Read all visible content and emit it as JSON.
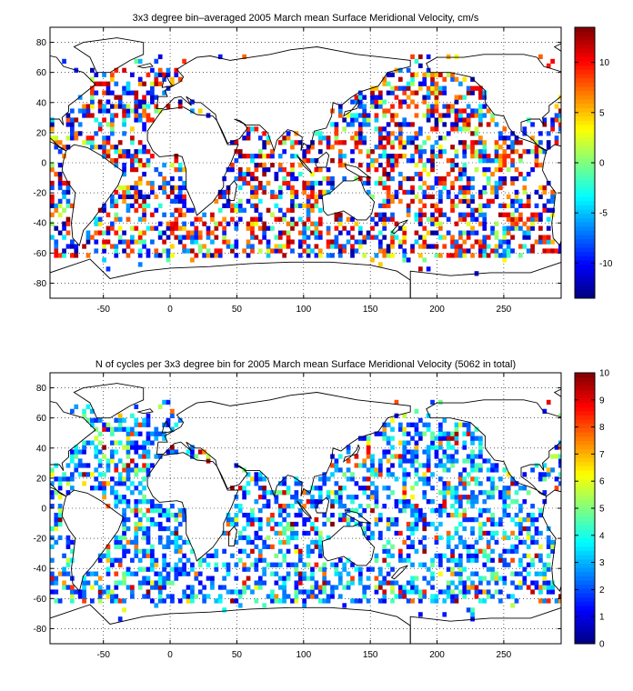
{
  "chart_data": [
    {
      "type": "heatmap",
      "title": "3x3 degree bin–averaged 2005 March mean Surface Meridional Velocity, cm/s",
      "xlabel": "",
      "ylabel": "",
      "xlim": [
        -90,
        293
      ],
      "ylim": [
        -90,
        90
      ],
      "xticks": [
        -50,
        0,
        50,
        100,
        150,
        200,
        250
      ],
      "yticks": [
        -80,
        -60,
        -40,
        -20,
        0,
        20,
        40,
        60,
        80
      ],
      "grid": true,
      "colorbar": {
        "colormap": "jet",
        "range": [
          -13.5,
          13.5
        ],
        "ticks": [
          -10,
          -5,
          0,
          5,
          10
        ],
        "placement": "right"
      },
      "bin_size_deg": 3,
      "value_style": "signed"
    },
    {
      "type": "heatmap",
      "title": "N of cycles per 3x3 degree bin for 2005 March mean Surface Meridional Velocity (5062 in total)",
      "xlabel": "",
      "ylabel": "",
      "xlim": [
        -90,
        293
      ],
      "ylim": [
        -90,
        90
      ],
      "xticks": [
        -50,
        0,
        50,
        100,
        150,
        200,
        250
      ],
      "yticks": [
        -80,
        -60,
        -40,
        -20,
        0,
        20,
        40,
        60,
        80
      ],
      "grid": true,
      "colorbar": {
        "colormap": "jet",
        "range": [
          0,
          10
        ],
        "ticks": [
          0,
          1,
          2,
          3,
          4,
          5,
          6,
          7,
          8,
          9,
          10
        ],
        "placement": "right"
      },
      "total_cycles": 5062,
      "bin_size_deg": 3,
      "value_style": "counts"
    }
  ]
}
